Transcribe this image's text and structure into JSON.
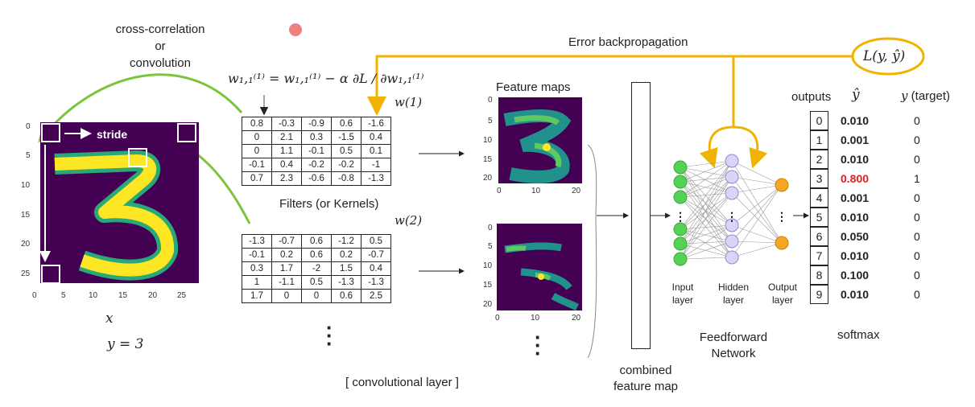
{
  "top": {
    "cross_corr_lines": [
      "cross-correlation",
      "or",
      "convolution"
    ],
    "error_label": "Error backpropagation",
    "loss_label": "L(y, ŷ)"
  },
  "input": {
    "stride_label": "stride",
    "x_label": "x",
    "y_label": "y = 3",
    "x_ticks": [
      "0",
      "5",
      "10",
      "15",
      "20",
      "25"
    ],
    "y_ticks": [
      "0",
      "5",
      "10",
      "15",
      "20",
      "25"
    ]
  },
  "formula": {
    "text": "w₁,₁⁽¹⁾ = w₁,₁⁽¹⁾ − α ∂L / ∂w₁,₁⁽¹⁾"
  },
  "filters": {
    "w1_label": "w(1)",
    "w2_label": "w(2)",
    "caption": "Filters (or Kernels)",
    "w1": [
      [
        "0.8",
        "-0.3",
        "-0.9",
        "0.6",
        "-1.6"
      ],
      [
        "0",
        "2.1",
        "0.3",
        "-1.5",
        "0.4"
      ],
      [
        "0",
        "1.1",
        "-0.1",
        "0.5",
        "0.1"
      ],
      [
        "-0.1",
        "0.4",
        "-0.2",
        "-0.2",
        "-1"
      ],
      [
        "0.7",
        "2.3",
        "-0.6",
        "-0.8",
        "-1.3"
      ]
    ],
    "w2": [
      [
        "-1.3",
        "-0.7",
        "0.6",
        "-1.2",
        "0.5"
      ],
      [
        "-0.1",
        "0.2",
        "0.6",
        "0.2",
        "-0.7"
      ],
      [
        "0.3",
        "1.7",
        "-2",
        "1.5",
        "0.4"
      ],
      [
        "1",
        "-1.1",
        "0.5",
        "-1.3",
        "-1.3"
      ],
      [
        "1.7",
        "0",
        "0",
        "0.6",
        "2.5"
      ]
    ]
  },
  "feature_maps": {
    "title": "Feature maps",
    "y_ticks": [
      "0",
      "5",
      "10",
      "15",
      "20"
    ],
    "x_ticks": [
      "0",
      "10",
      "20"
    ]
  },
  "conv_layer_label": "[ convolutional layer ]",
  "combined": {
    "lines": [
      "combined",
      "feature map"
    ]
  },
  "network": {
    "input_layer": [
      "Input",
      "layer"
    ],
    "hidden_layer": [
      "Hidden",
      "layer"
    ],
    "output_layer": [
      "Output",
      "layer"
    ],
    "title": [
      "Feedforward",
      "Network"
    ],
    "colors": {
      "input": "#55d155",
      "hidden": "#d9d6f5",
      "output": "#f5a623",
      "arrow": "#f0b400"
    }
  },
  "outputs": {
    "header": "outputs",
    "yhat_header": "ŷ",
    "y_header_var": "y",
    "y_header_note": "(target)",
    "softmax_label": "softmax",
    "rows": [
      {
        "idx": "0",
        "yhat": "0.010",
        "y": "0"
      },
      {
        "idx": "1",
        "yhat": "0.001",
        "y": "0"
      },
      {
        "idx": "2",
        "yhat": "0.010",
        "y": "0"
      },
      {
        "idx": "3",
        "yhat": "0.800",
        "y": "1"
      },
      {
        "idx": "4",
        "yhat": "0.001",
        "y": "0"
      },
      {
        "idx": "5",
        "yhat": "0.010",
        "y": "0"
      },
      {
        "idx": "6",
        "yhat": "0.050",
        "y": "0"
      },
      {
        "idx": "7",
        "yhat": "0.010",
        "y": "0"
      },
      {
        "idx": "8",
        "yhat": "0.100",
        "y": "0"
      },
      {
        "idx": "9",
        "yhat": "0.010",
        "y": "0"
      }
    ],
    "highlight_color": "#e02020"
  }
}
